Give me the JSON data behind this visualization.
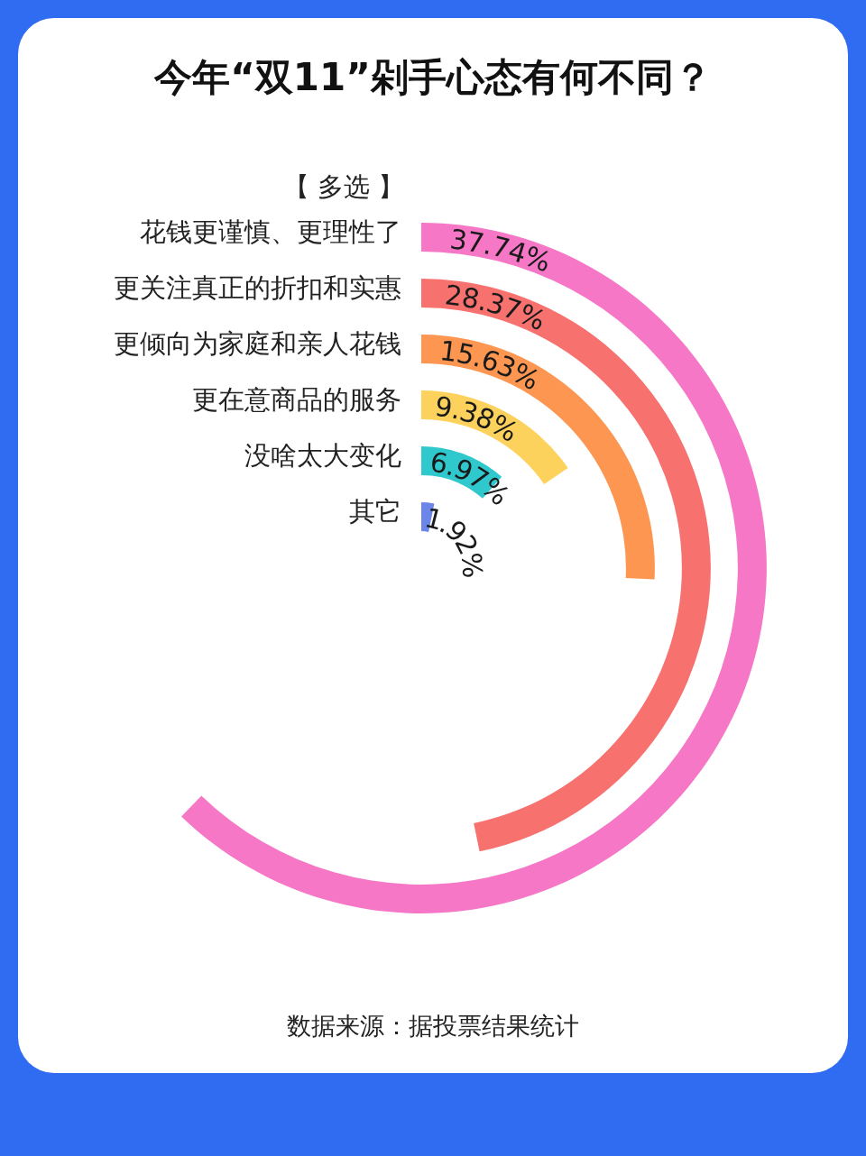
{
  "chart_data": {
    "type": "other",
    "title": "今年“双11”剁手心态有何不同？",
    "subtitle": "【 多选 】",
    "categories": [
      "花钱更谨慎、更理性了",
      "更关注真正的折扣和实惠",
      "更倾向为家庭和亲人花钱",
      "更在意商品的服务",
      "没啥太大变化",
      "其它"
    ],
    "values": [
      37.74,
      28.37,
      15.63,
      9.38,
      6.97,
      1.92
    ],
    "value_labels": [
      "37.74%",
      "28.37%",
      "15.63%",
      "9.38%",
      "6.97%",
      "1.92%"
    ],
    "colors": [
      "#f577c6",
      "#f7716f",
      "#fc9651",
      "#fdd25c",
      "#2ec8cd",
      "#6b86e8"
    ],
    "annotations": [
      "数据来源：据投票结果统计"
    ]
  }
}
